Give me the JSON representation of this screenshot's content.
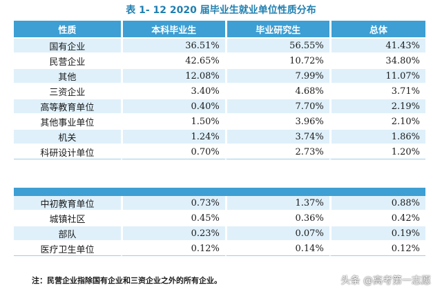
{
  "title": "表 1- 12    2020 届毕业生就业单位性质分布",
  "header": [
    "性质",
    "本科毕业生",
    "毕业研究生",
    "总体"
  ],
  "rows_top": [
    [
      "国有企业",
      "36.51%",
      "56.55%",
      "41.43%"
    ],
    [
      "民营企业",
      "42.65%",
      "10.72%",
      "34.80%"
    ],
    [
      "其他",
      "12.08%",
      "7.99%",
      "11.07%"
    ],
    [
      "三资企业",
      "3.40%",
      "4.68%",
      "3.71%"
    ],
    [
      "高等教育单位",
      "0.40%",
      "7.70%",
      "2.19%"
    ],
    [
      "其他事业单位",
      "1.50%",
      "3.96%",
      "2.10%"
    ],
    [
      "机关",
      "1.24%",
      "3.74%",
      "1.86%"
    ],
    [
      "科研设计单位",
      "0.70%",
      "2.73%",
      "1.20%"
    ]
  ],
  "rows_bottom": [
    [
      "中初教育单位",
      "0.73%",
      "1.37%",
      "0.88%"
    ],
    [
      "城镇社区",
      "0.45%",
      "0.36%",
      "0.42%"
    ],
    [
      "部队",
      "0.23%",
      "0.07%",
      "0.19%"
    ],
    [
      "医疗卫生单位",
      "0.12%",
      "0.14%",
      "0.12%"
    ]
  ],
  "note": "注：民营企业指除国有企业和三资企业之外的所有企业。",
  "watermark": "头条 @高考第一志愿"
}
